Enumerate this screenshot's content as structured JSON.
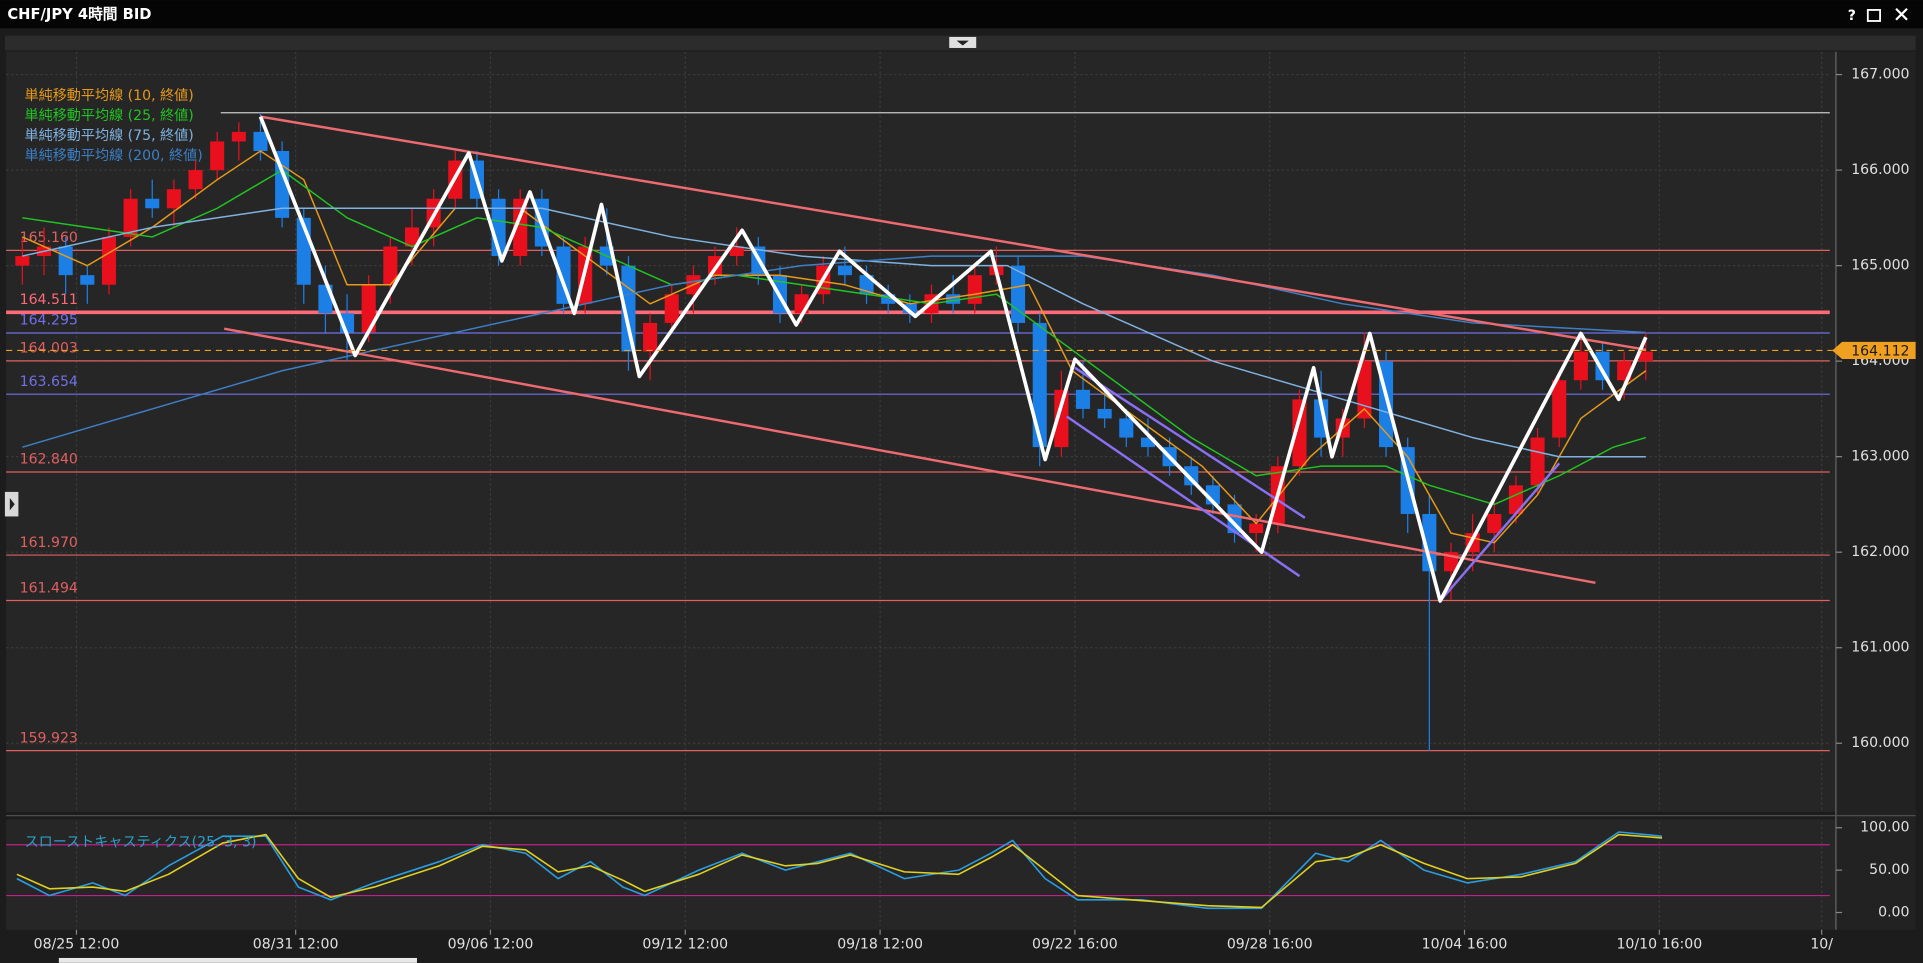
{
  "toolbar": {
    "help": "?"
  },
  "chart_data": [
    {
      "type": "candlestick",
      "title": "CHF/JPY 4時間 BID",
      "x": [
        3,
        7,
        11,
        15,
        19,
        23,
        27,
        31,
        35,
        39,
        43,
        47,
        51,
        55,
        59,
        63,
        67,
        71,
        75,
        79,
        83,
        87,
        91,
        95,
        99,
        103,
        107,
        111,
        115,
        119,
        123,
        127,
        131,
        135,
        139,
        143,
        147,
        151,
        155,
        159,
        163,
        167,
        171,
        175,
        179,
        183,
        187,
        191,
        195,
        199,
        203,
        207,
        211,
        215,
        219,
        223,
        227,
        231,
        235,
        239,
        243,
        247,
        251,
        255,
        259,
        263,
        267,
        271,
        275,
        279,
        283,
        287,
        291,
        295,
        299,
        303
      ],
      "open": [
        165.0,
        165.1,
        165.2,
        164.9,
        164.8,
        165.3,
        165.7,
        165.6,
        165.8,
        166.0,
        166.3,
        166.4,
        166.2,
        165.5,
        164.8,
        164.5,
        164.3,
        164.8,
        165.2,
        165.4,
        165.7,
        166.1,
        165.7,
        165.1,
        165.7,
        165.2,
        164.6,
        165.2,
        165.0,
        164.1,
        164.4,
        164.7,
        164.9,
        165.1,
        165.2,
        164.9,
        164.5,
        164.7,
        165.0,
        164.9,
        164.7,
        164.6,
        164.5,
        164.7,
        164.6,
        164.9,
        165.0,
        164.4,
        163.1,
        163.7,
        163.5,
        163.4,
        163.2,
        163.1,
        162.9,
        162.7,
        162.5,
        162.2,
        162.3,
        162.9,
        163.6,
        163.2,
        163.4,
        164.0,
        163.1,
        162.4,
        161.8,
        162.0,
        162.2,
        162.4,
        162.7,
        163.2,
        163.8,
        164.1,
        163.8,
        164.0
      ],
      "high": [
        165.3,
        165.4,
        165.3,
        165.0,
        165.4,
        165.8,
        165.9,
        165.9,
        166.1,
        166.4,
        166.5,
        166.6,
        166.3,
        165.6,
        165.0,
        164.7,
        164.9,
        165.3,
        165.6,
        165.8,
        166.2,
        166.2,
        165.8,
        165.8,
        165.8,
        165.3,
        165.3,
        165.6,
        165.1,
        164.5,
        164.8,
        165.0,
        165.2,
        165.4,
        165.3,
        165.0,
        164.8,
        165.1,
        165.2,
        165.0,
        164.8,
        164.7,
        164.8,
        164.9,
        165.0,
        165.2,
        165.1,
        164.5,
        163.9,
        164.0,
        163.7,
        163.5,
        163.4,
        163.2,
        163.0,
        162.8,
        162.6,
        162.4,
        163.0,
        163.7,
        163.9,
        163.5,
        164.3,
        164.1,
        163.2,
        162.6,
        162.1,
        162.4,
        162.6,
        162.8,
        163.3,
        163.9,
        164.3,
        164.2,
        164.1,
        164.3
      ],
      "low": [
        164.8,
        164.9,
        164.7,
        164.6,
        164.7,
        165.2,
        165.5,
        165.4,
        165.7,
        165.9,
        166.1,
        166.1,
        165.4,
        164.6,
        164.3,
        164.0,
        164.2,
        164.6,
        165.0,
        165.2,
        165.6,
        165.6,
        165.0,
        165.0,
        165.1,
        164.5,
        164.5,
        164.9,
        163.9,
        163.8,
        164.3,
        164.5,
        164.8,
        165.0,
        164.8,
        164.4,
        164.4,
        164.6,
        164.8,
        164.6,
        164.5,
        164.4,
        164.4,
        164.5,
        164.5,
        164.8,
        164.3,
        162.9,
        163.0,
        163.4,
        163.3,
        163.1,
        163.0,
        162.8,
        162.6,
        162.4,
        162.1,
        162.0,
        162.2,
        162.8,
        163.0,
        163.0,
        163.3,
        163.0,
        162.2,
        159.92,
        161.5,
        161.8,
        162.0,
        162.3,
        162.6,
        163.1,
        163.7,
        163.7,
        163.6,
        163.8
      ],
      "close": [
        165.1,
        165.2,
        164.9,
        164.8,
        165.3,
        165.7,
        165.6,
        165.8,
        166.0,
        166.3,
        166.4,
        166.2,
        165.5,
        164.8,
        164.5,
        164.3,
        164.8,
        165.2,
        165.4,
        165.7,
        166.1,
        165.7,
        165.1,
        165.7,
        165.2,
        164.6,
        165.2,
        165.0,
        164.1,
        164.4,
        164.7,
        164.9,
        165.1,
        165.2,
        164.9,
        164.5,
        164.7,
        165.0,
        164.9,
        164.7,
        164.6,
        164.5,
        164.7,
        164.6,
        164.9,
        165.0,
        164.4,
        163.1,
        163.7,
        163.5,
        163.4,
        163.2,
        163.1,
        162.9,
        162.7,
        162.5,
        162.2,
        162.3,
        162.9,
        163.6,
        163.2,
        163.4,
        164.0,
        163.1,
        162.4,
        161.8,
        162.0,
        162.2,
        162.4,
        162.7,
        163.2,
        163.8,
        164.1,
        163.8,
        164.0,
        164.1
      ],
      "up_color": "#e8101c",
      "down_color": "#1c7fe6",
      "xlim": [
        0,
        337
      ],
      "xticks": [
        {
          "value": 13,
          "label": "08/25 12:00"
        },
        {
          "value": 53.5,
          "label": "08/31 12:00"
        },
        {
          "value": 89.5,
          "label": "09/06 12:00"
        },
        {
          "value": 125.5,
          "label": "09/12 12:00"
        },
        {
          "value": 161.5,
          "label": "09/18 12:00"
        },
        {
          "value": 197.5,
          "label": "09/22 16:00"
        },
        {
          "value": 233.5,
          "label": "09/28 16:00"
        },
        {
          "value": 269.5,
          "label": "10/04 16:00"
        },
        {
          "value": 305.5,
          "label": "10/10 16:00"
        },
        {
          "value": 335.5,
          "label": "10/"
        }
      ],
      "ylim": [
        159.28,
        167.24
      ],
      "yticks": [
        {
          "value": 160,
          "label": "160.000"
        },
        {
          "value": 161,
          "label": "161.000"
        },
        {
          "value": 162,
          "label": "162.000"
        },
        {
          "value": 163,
          "label": "163.000"
        },
        {
          "value": 164,
          "label": "164.000"
        },
        {
          "value": 165,
          "label": "165.000"
        },
        {
          "value": 166,
          "label": "166.000"
        },
        {
          "value": 167,
          "label": "167.000"
        }
      ],
      "grid": true,
      "series": [
        {
          "name": "単純移動平均線 (10, 終値)",
          "color": "#e69a1a",
          "x": [
            3,
            15,
            27,
            39,
            47,
            55,
            63,
            71,
            83,
            95,
            107,
            119,
            131,
            143,
            155,
            167,
            179,
            189,
            197,
            209,
            221,
            231,
            241,
            251,
            259,
            267,
            275,
            283,
            291,
            303
          ],
          "values": [
            165.3,
            165.0,
            165.4,
            165.9,
            166.2,
            165.9,
            164.8,
            164.8,
            165.6,
            165.6,
            165.1,
            164.6,
            164.9,
            164.9,
            164.8,
            164.6,
            164.7,
            164.8,
            163.9,
            163.4,
            162.9,
            162.3,
            163.0,
            163.5,
            163.0,
            162.2,
            162.1,
            162.6,
            163.4,
            163.9
          ]
        },
        {
          "name": "単純移動平均線 (25, 終値)",
          "color": "#22c422",
          "x": [
            3,
            15,
            27,
            39,
            51,
            63,
            75,
            87,
            99,
            111,
            123,
            135,
            147,
            159,
            171,
            183,
            195,
            207,
            219,
            231,
            243,
            255,
            263,
            275,
            287,
            297,
            303
          ],
          "values": [
            165.5,
            165.4,
            165.3,
            165.6,
            166.0,
            165.5,
            165.2,
            165.5,
            165.4,
            165.1,
            164.8,
            164.9,
            164.8,
            164.7,
            164.6,
            164.7,
            164.2,
            163.7,
            163.2,
            162.8,
            162.9,
            162.9,
            162.7,
            162.5,
            162.8,
            163.1,
            163.2
          ]
        },
        {
          "name": "単純移動平均線 (75, 終値)",
          "color": "#7fb2e0",
          "x": [
            3,
            27,
            51,
            75,
            99,
            123,
            147,
            171,
            185,
            199,
            223,
            247,
            271,
            287,
            303
          ],
          "values": [
            165.1,
            165.4,
            165.6,
            165.6,
            165.6,
            165.3,
            165.1,
            165.0,
            165.0,
            164.6,
            164.0,
            163.6,
            163.2,
            163.0,
            163.0
          ]
        },
        {
          "name": "単純移動平均線 (200, 終値)",
          "color": "#3d7fc6",
          "x": [
            3,
            27,
            51,
            75,
            99,
            123,
            147,
            171,
            199,
            223,
            247,
            271,
            303
          ],
          "values": [
            163.1,
            163.5,
            163.9,
            164.2,
            164.5,
            164.8,
            165.0,
            165.1,
            165.1,
            164.9,
            164.6,
            164.4,
            164.3
          ]
        }
      ],
      "levels": [
        {
          "value": 165.16,
          "label": "165.160",
          "color": "#e06060",
          "line_width": 1
        },
        {
          "value": 164.511,
          "label": "164.511",
          "color": "#ff6a78",
          "line_width": 3
        },
        {
          "value": 164.295,
          "label": "164.295",
          "color": "#7070e8",
          "line_width": 1
        },
        {
          "value": 164.003,
          "label": "164.003",
          "color": "#e06060",
          "line_width": 1
        },
        {
          "value": 163.654,
          "label": "163.654",
          "color": "#7070e8",
          "line_width": 1
        },
        {
          "value": 162.84,
          "label": "162.840",
          "color": "#e06060",
          "line_width": 1
        },
        {
          "value": 161.97,
          "label": "161.970",
          "color": "#e06060",
          "line_width": 1
        },
        {
          "value": 161.494,
          "label": "161.494",
          "color": "#e06060",
          "line_width": 1
        },
        {
          "value": 159.923,
          "label": "159.923",
          "color": "#e06060",
          "line_width": 1
        }
      ],
      "reference_line": {
        "value": 166.6,
        "color": "#c8c8c8"
      },
      "current_price": {
        "value": 164.112,
        "label": "164.112",
        "color": "#f0a020"
      },
      "trend_lines": [
        {
          "x": [
            47,
            303
          ],
          "values": [
            166.56,
            164.12
          ],
          "color": "#ec6a70"
        },
        {
          "x": [
            40.3,
            293.7
          ],
          "values": [
            164.34,
            161.68
          ],
          "color": "#ec6a70"
        },
        {
          "x": [
            196,
            239
          ],
          "values": [
            163.42,
            161.75
          ],
          "color": "#8a70f0"
        },
        {
          "x": [
            197.5,
            240
          ],
          "values": [
            163.93,
            162.36
          ],
          "color": "#8a70f0"
        },
        {
          "x": [
            265,
            287
          ],
          "values": [
            161.49,
            162.93
          ],
          "color": "#8a70f0"
        }
      ],
      "zigzag": {
        "color": "#ffffff",
        "x": [
          47,
          64.5,
          85.5,
          91.6,
          96.8,
          105,
          110,
          117,
          136,
          146,
          154,
          168,
          182,
          192,
          197.5,
          232,
          241.6,
          245,
          252,
          265,
          291,
          298,
          303
        ],
        "values": [
          166.56,
          164.06,
          166.18,
          165.05,
          165.77,
          164.5,
          165.64,
          163.84,
          165.37,
          164.38,
          165.15,
          164.47,
          165.15,
          162.97,
          164.02,
          162.0,
          163.93,
          163.0,
          164.29,
          161.49,
          164.29,
          163.6,
          164.25
        ]
      }
    },
    {
      "type": "line",
      "title": "スローストキャスティクス(25, 3, 3)",
      "xlim": [
        0,
        337
      ],
      "ylim": [
        -16,
        107
      ],
      "yticks": [
        {
          "value": 0,
          "label": "0.00"
        },
        {
          "value": 50,
          "label": "50.00"
        },
        {
          "value": 100,
          "label": "100.00"
        }
      ],
      "levels": [
        {
          "value": 80,
          "color": "#c0208a"
        },
        {
          "value": 20,
          "color": "#c0208a"
        }
      ],
      "series": [
        {
          "color": "#2a9de0",
          "x": [
            2,
            8,
            16,
            22,
            30,
            40,
            48,
            54,
            60,
            68,
            80,
            88,
            96,
            102,
            108,
            114,
            118,
            128,
            136,
            144,
            150,
            156,
            166,
            176,
            182,
            186,
            192,
            198,
            210,
            222,
            232,
            242,
            248,
            254,
            262,
            270,
            280,
            290,
            298,
            306
          ],
          "values": [
            40,
            20,
            35,
            20,
            55,
            90,
            90,
            30,
            15,
            35,
            60,
            80,
            70,
            40,
            60,
            30,
            20,
            50,
            70,
            50,
            60,
            70,
            40,
            50,
            70,
            85,
            40,
            15,
            15,
            5,
            5,
            70,
            60,
            85,
            50,
            35,
            45,
            60,
            95,
            90
          ]
        },
        {
          "color": "#e0d020",
          "x": [
            2,
            8,
            16,
            22,
            30,
            40,
            48,
            54,
            60,
            68,
            80,
            88,
            96,
            102,
            108,
            114,
            118,
            128,
            136,
            144,
            150,
            156,
            166,
            176,
            182,
            186,
            192,
            198,
            210,
            222,
            232,
            242,
            248,
            254,
            262,
            270,
            280,
            290,
            298,
            306
          ],
          "values": [
            45,
            28,
            30,
            25,
            45,
            82,
            92,
            40,
            18,
            30,
            55,
            78,
            74,
            48,
            55,
            38,
            25,
            45,
            68,
            55,
            58,
            68,
            48,
            45,
            65,
            80,
            50,
            20,
            14,
            8,
            6,
            60,
            65,
            80,
            58,
            40,
            42,
            58,
            92,
            88
          ]
        }
      ]
    }
  ]
}
